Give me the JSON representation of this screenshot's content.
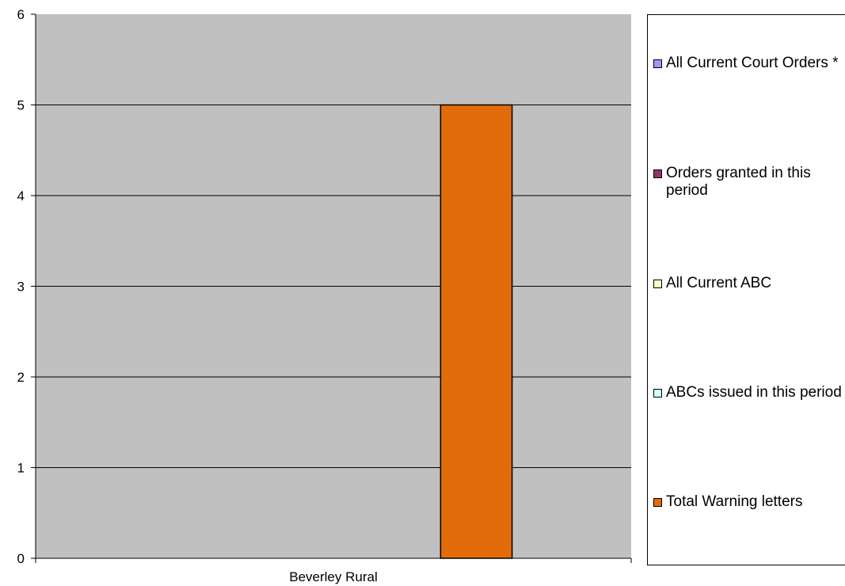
{
  "chart_data": {
    "type": "bar",
    "categories": [
      "Beverley Rural"
    ],
    "series": [
      {
        "name": "All Current Court Orders *",
        "color": "#9999ff",
        "values": [
          0
        ]
      },
      {
        "name": "Orders granted in this period",
        "color": "#993366",
        "values": [
          0
        ]
      },
      {
        "name": "All Current ABC",
        "color": "#ffffcc",
        "values": [
          0
        ]
      },
      {
        "name": "ABCs issued in this period",
        "color": "#ccffff",
        "values": [
          0
        ]
      },
      {
        "name": "Total Warning letters",
        "color": "#e36c0a",
        "values": [
          5
        ]
      }
    ],
    "yticks": [
      "0",
      "1",
      "2",
      "3",
      "4",
      "5",
      "6"
    ],
    "ylim": [
      0,
      6
    ],
    "grid": true,
    "plot_background": "#c0c0c0",
    "legend_position": "right"
  }
}
